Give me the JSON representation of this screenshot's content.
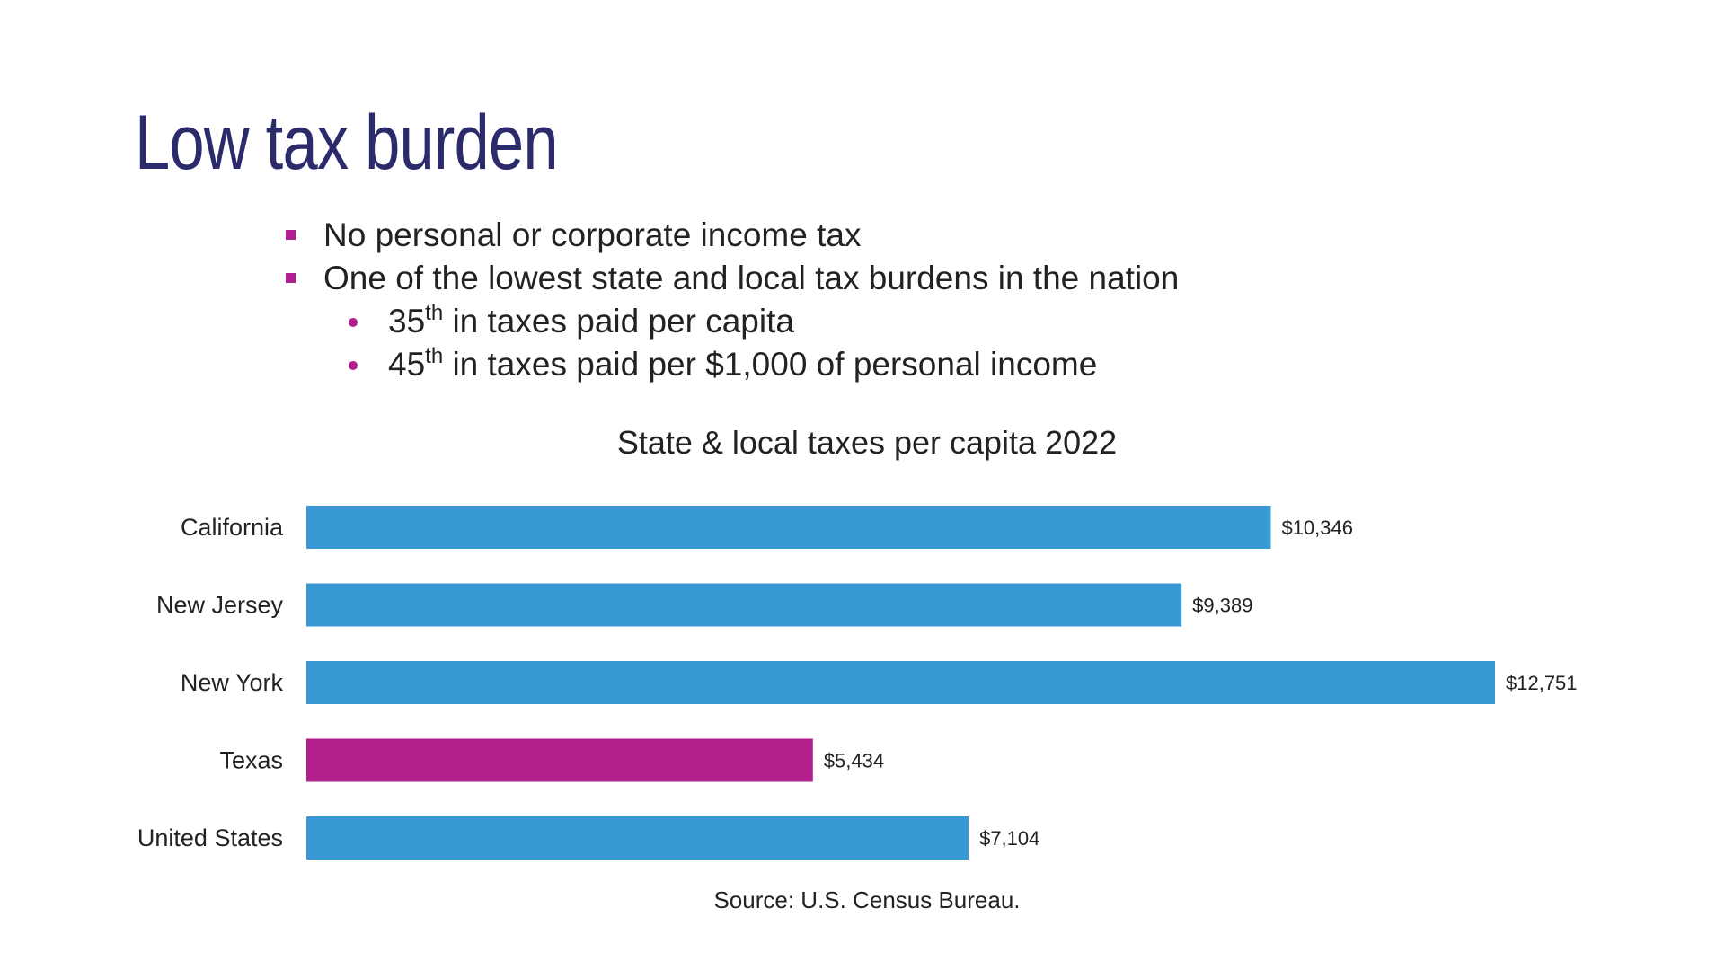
{
  "slide": {
    "title": "Low tax burden",
    "bullets": [
      {
        "level": 1,
        "text": "No personal or corporate income tax"
      },
      {
        "level": 1,
        "text": "One of the lowest state and local tax burdens in the nation"
      },
      {
        "level": 2,
        "rank": "35",
        "sup": "th",
        "text": " in taxes paid per capita"
      },
      {
        "level": 2,
        "rank": "45",
        "sup": "th",
        "text": " in taxes paid per $1,000 of personal income"
      }
    ],
    "source": "Source: U.S. Census Bureau."
  },
  "colors": {
    "title": "#2b2a6b",
    "accent": "#b11f8c",
    "bar": "#3899d5",
    "highlight": "#b11f8c"
  },
  "chart_data": {
    "type": "bar",
    "orientation": "horizontal",
    "title": "State & local taxes per capita 2022",
    "categories": [
      "California",
      "New Jersey",
      "New York",
      "Texas",
      "United States"
    ],
    "values": [
      10346,
      9389,
      12751,
      5434,
      7104
    ],
    "value_labels": [
      "$10,346",
      "$9,389",
      "$12,751",
      "$5,434",
      "$7,104"
    ],
    "highlight": "Texas",
    "xlim": [
      0,
      12751
    ],
    "xlabel": "",
    "ylabel": "",
    "grid": false,
    "legend": "none"
  }
}
